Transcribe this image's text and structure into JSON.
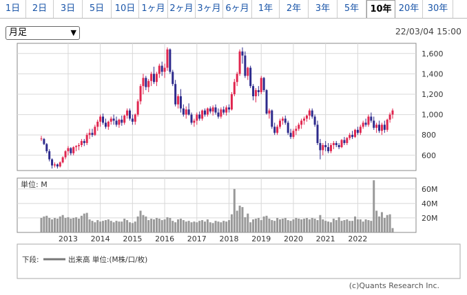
{
  "tabs": [
    "1日",
    "2日",
    "3日",
    "5日",
    "10日",
    "1ヶ月",
    "2ヶ月",
    "3ヶ月",
    "6ヶ月",
    "1年",
    "2年",
    "3年",
    "5年",
    "10年",
    "20年",
    "30年"
  ],
  "active_tab": "10年",
  "period_select": "月足",
  "timestamp": "22/03/04 15:00",
  "volume_unit_label": "単位: M",
  "legend_prefix": "下段:",
  "legend_text": "出来高 単位:(M株/口/枚)",
  "copyright": "(c)Quants Research Inc.",
  "colors": {
    "up": "#e0264f",
    "down": "#2d2a8c",
    "volume": "#999999",
    "grid": "#d8d8d8"
  },
  "chart_data": {
    "type": "candlestick",
    "price_axis": {
      "ticks": [
        600,
        800,
        1000,
        1200,
        1400,
        1600
      ],
      "tick_labels": [
        "600",
        "800",
        "1,000",
        "1,200",
        "1,400",
        "1,600"
      ],
      "range": [
        450,
        1700
      ]
    },
    "volume_axis": {
      "ticks": [
        20,
        40,
        60
      ],
      "tick_labels": [
        "20M",
        "40M",
        "60M"
      ],
      "range": [
        0,
        75
      ]
    },
    "x_labels": [
      "2013",
      "2014",
      "2015",
      "2016",
      "2017",
      "2018",
      "2019",
      "2020",
      "2021",
      "2022"
    ],
    "start": "2012-03",
    "ohlc": [
      [
        760,
        790,
        740,
        765
      ],
      [
        760,
        770,
        700,
        710
      ],
      [
        710,
        720,
        620,
        640
      ],
      [
        640,
        660,
        540,
        560
      ],
      [
        560,
        570,
        470,
        500
      ],
      [
        500,
        530,
        480,
        510
      ],
      [
        510,
        520,
        470,
        490
      ],
      [
        490,
        540,
        480,
        530
      ],
      [
        530,
        590,
        520,
        580
      ],
      [
        580,
        650,
        560,
        640
      ],
      [
        640,
        690,
        600,
        670
      ],
      [
        670,
        680,
        600,
        620
      ],
      [
        620,
        690,
        600,
        680
      ],
      [
        680,
        700,
        640,
        690
      ],
      [
        690,
        720,
        650,
        700
      ],
      [
        700,
        760,
        680,
        740
      ],
      [
        740,
        760,
        690,
        720
      ],
      [
        720,
        820,
        700,
        800
      ],
      [
        800,
        860,
        760,
        820
      ],
      [
        820,
        860,
        780,
        800
      ],
      [
        800,
        900,
        790,
        880
      ],
      [
        880,
        950,
        840,
        930
      ],
      [
        930,
        1000,
        880,
        980
      ],
      [
        980,
        1010,
        900,
        920
      ],
      [
        920,
        960,
        860,
        880
      ],
      [
        880,
        940,
        850,
        930
      ],
      [
        930,
        980,
        900,
        960
      ],
      [
        960,
        1000,
        900,
        940
      ],
      [
        940,
        980,
        880,
        900
      ],
      [
        900,
        960,
        870,
        950
      ],
      [
        950,
        990,
        890,
        920
      ],
      [
        920,
        1000,
        900,
        990
      ],
      [
        990,
        1060,
        960,
        1040
      ],
      [
        1040,
        1060,
        940,
        960
      ],
      [
        960,
        1000,
        900,
        930
      ],
      [
        930,
        1010,
        900,
        1000
      ],
      [
        1000,
        1150,
        980,
        1130
      ],
      [
        1130,
        1300,
        1100,
        1280
      ],
      [
        1280,
        1400,
        1200,
        1360
      ],
      [
        1360,
        1380,
        1240,
        1270
      ],
      [
        1270,
        1350,
        1220,
        1330
      ],
      [
        1330,
        1420,
        1280,
        1400
      ],
      [
        1400,
        1470,
        1300,
        1320
      ],
      [
        1320,
        1420,
        1280,
        1400
      ],
      [
        1400,
        1500,
        1360,
        1480
      ],
      [
        1480,
        1520,
        1380,
        1420
      ],
      [
        1420,
        1500,
        1360,
        1460
      ],
      [
        1460,
        1660,
        1430,
        1640
      ],
      [
        1640,
        1650,
        1400,
        1420
      ],
      [
        1420,
        1440,
        1280,
        1300
      ],
      [
        1300,
        1340,
        1080,
        1100
      ],
      [
        1100,
        1200,
        1060,
        1180
      ],
      [
        1180,
        1250,
        1020,
        1060
      ],
      [
        1060,
        1100,
        980,
        1000
      ],
      [
        1000,
        1080,
        960,
        1050
      ],
      [
        1050,
        1110,
        990,
        1000
      ],
      [
        1000,
        1020,
        900,
        920
      ],
      [
        920,
        960,
        880,
        940
      ],
      [
        940,
        1020,
        900,
        1000
      ],
      [
        1000,
        1030,
        940,
        960
      ],
      [
        960,
        1050,
        940,
        1040
      ],
      [
        1040,
        1060,
        980,
        1000
      ],
      [
        1000,
        1070,
        980,
        1060
      ],
      [
        1060,
        1080,
        1010,
        1030
      ],
      [
        1030,
        1090,
        990,
        1070
      ],
      [
        1070,
        1100,
        1000,
        1020
      ],
      [
        1020,
        1060,
        960,
        980
      ],
      [
        980,
        1070,
        960,
        1050
      ],
      [
        1050,
        1080,
        1000,
        1020
      ],
      [
        1020,
        1090,
        990,
        1070
      ],
      [
        1070,
        1100,
        1020,
        1050
      ],
      [
        1050,
        1220,
        1040,
        1200
      ],
      [
        1200,
        1350,
        1180,
        1320
      ],
      [
        1320,
        1420,
        1280,
        1400
      ],
      [
        1400,
        1640,
        1380,
        1620
      ],
      [
        1620,
        1660,
        1500,
        1580
      ],
      [
        1580,
        1620,
        1360,
        1380
      ],
      [
        1380,
        1470,
        1340,
        1460
      ],
      [
        1460,
        1480,
        1260,
        1280
      ],
      [
        1280,
        1300,
        1140,
        1180
      ],
      [
        1180,
        1260,
        1120,
        1240
      ],
      [
        1240,
        1280,
        1180,
        1220
      ],
      [
        1220,
        1380,
        1200,
        1360
      ],
      [
        1360,
        1370,
        1220,
        1240
      ],
      [
        1240,
        1250,
        1000,
        1010
      ],
      [
        1010,
        1060,
        960,
        1040
      ],
      [
        1040,
        1050,
        860,
        880
      ],
      [
        880,
        920,
        800,
        820
      ],
      [
        820,
        900,
        800,
        880
      ],
      [
        880,
        960,
        860,
        940
      ],
      [
        940,
        980,
        900,
        960
      ],
      [
        960,
        990,
        900,
        920
      ],
      [
        920,
        940,
        800,
        820
      ],
      [
        820,
        860,
        760,
        780
      ],
      [
        780,
        860,
        760,
        840
      ],
      [
        840,
        890,
        800,
        860
      ],
      [
        860,
        920,
        840,
        900
      ],
      [
        900,
        960,
        860,
        940
      ],
      [
        940,
        980,
        900,
        960
      ],
      [
        960,
        1000,
        930,
        990
      ],
      [
        990,
        1060,
        950,
        1040
      ],
      [
        1040,
        1060,
        960,
        980
      ],
      [
        980,
        1000,
        880,
        900
      ],
      [
        900,
        940,
        700,
        720
      ],
      [
        720,
        760,
        560,
        650
      ],
      [
        650,
        720,
        600,
        700
      ],
      [
        700,
        740,
        640,
        680
      ],
      [
        680,
        720,
        620,
        640
      ],
      [
        640,
        720,
        620,
        700
      ],
      [
        700,
        740,
        660,
        720
      ],
      [
        720,
        740,
        680,
        700
      ],
      [
        700,
        720,
        660,
        680
      ],
      [
        680,
        760,
        670,
        750
      ],
      [
        750,
        780,
        700,
        720
      ],
      [
        720,
        780,
        700,
        770
      ],
      [
        770,
        820,
        750,
        800
      ],
      [
        800,
        840,
        760,
        780
      ],
      [
        780,
        860,
        770,
        850
      ],
      [
        850,
        880,
        800,
        820
      ],
      [
        820,
        900,
        800,
        880
      ],
      [
        880,
        940,
        860,
        920
      ],
      [
        920,
        960,
        880,
        900
      ],
      [
        900,
        1000,
        880,
        980
      ],
      [
        980,
        1020,
        920,
        940
      ],
      [
        940,
        980,
        850,
        870
      ],
      [
        870,
        920,
        820,
        900
      ],
      [
        900,
        940,
        820,
        840
      ],
      [
        840,
        920,
        800,
        900
      ],
      [
        900,
        940,
        820,
        850
      ],
      [
        850,
        960,
        830,
        950
      ],
      [
        950,
        1020,
        920,
        1000
      ],
      [
        1000,
        1060,
        960,
        1040
      ]
    ],
    "volume": [
      20,
      22,
      23,
      20,
      18,
      20,
      19,
      22,
      24,
      20,
      21,
      19,
      20,
      21,
      19,
      23,
      26,
      27,
      18,
      16,
      14,
      17,
      15,
      16,
      17,
      18,
      16,
      14,
      16,
      15,
      15,
      19,
      17,
      14,
      13,
      15,
      22,
      30,
      24,
      22,
      17,
      19,
      18,
      20,
      19,
      17,
      18,
      21,
      20,
      16,
      14,
      18,
      19,
      17,
      15,
      16,
      14,
      15,
      14,
      16,
      17,
      15,
      18,
      14,
      13,
      16,
      15,
      14,
      16,
      15,
      17,
      25,
      60,
      30,
      37,
      35,
      21,
      26,
      14,
      18,
      19,
      20,
      17,
      22,
      23,
      19,
      17,
      16,
      20,
      18,
      19,
      20,
      17,
      16,
      18,
      20,
      19,
      18,
      19,
      20,
      18,
      20,
      19,
      17,
      24,
      18,
      16,
      15,
      14,
      19,
      17,
      21,
      16,
      17,
      18,
      16,
      16,
      22,
      18,
      18,
      15,
      18,
      17,
      16,
      72,
      30,
      22,
      28,
      20,
      24,
      25,
      6
    ]
  }
}
